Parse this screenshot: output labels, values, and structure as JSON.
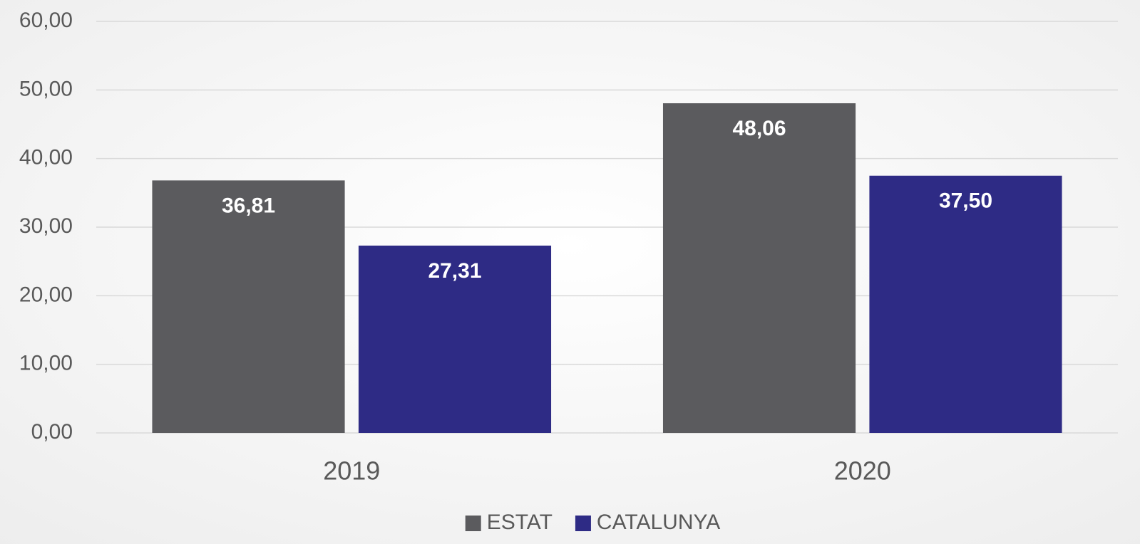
{
  "chart_data": {
    "type": "bar",
    "categories": [
      "2019",
      "2020"
    ],
    "series": [
      {
        "name": "ESTAT",
        "color": "#5b5b5e",
        "values": [
          36.81,
          48.06
        ],
        "value_labels": [
          "36,81",
          "48,06"
        ]
      },
      {
        "name": "CATALUNYA",
        "color": "#2e2b85",
        "values": [
          27.31,
          37.5
        ],
        "value_labels": [
          "27,31",
          "37,50"
        ]
      }
    ],
    "ylim": [
      0,
      60
    ],
    "yticks": [
      {
        "value": 0,
        "label": "0,00"
      },
      {
        "value": 10,
        "label": "10,00"
      },
      {
        "value": 20,
        "label": "20,00"
      },
      {
        "value": 30,
        "label": "30,00"
      },
      {
        "value": 40,
        "label": "40,00"
      },
      {
        "value": 50,
        "label": "50,00"
      },
      {
        "value": 60,
        "label": "60,00"
      }
    ],
    "grid": true,
    "legend": "bottom"
  }
}
